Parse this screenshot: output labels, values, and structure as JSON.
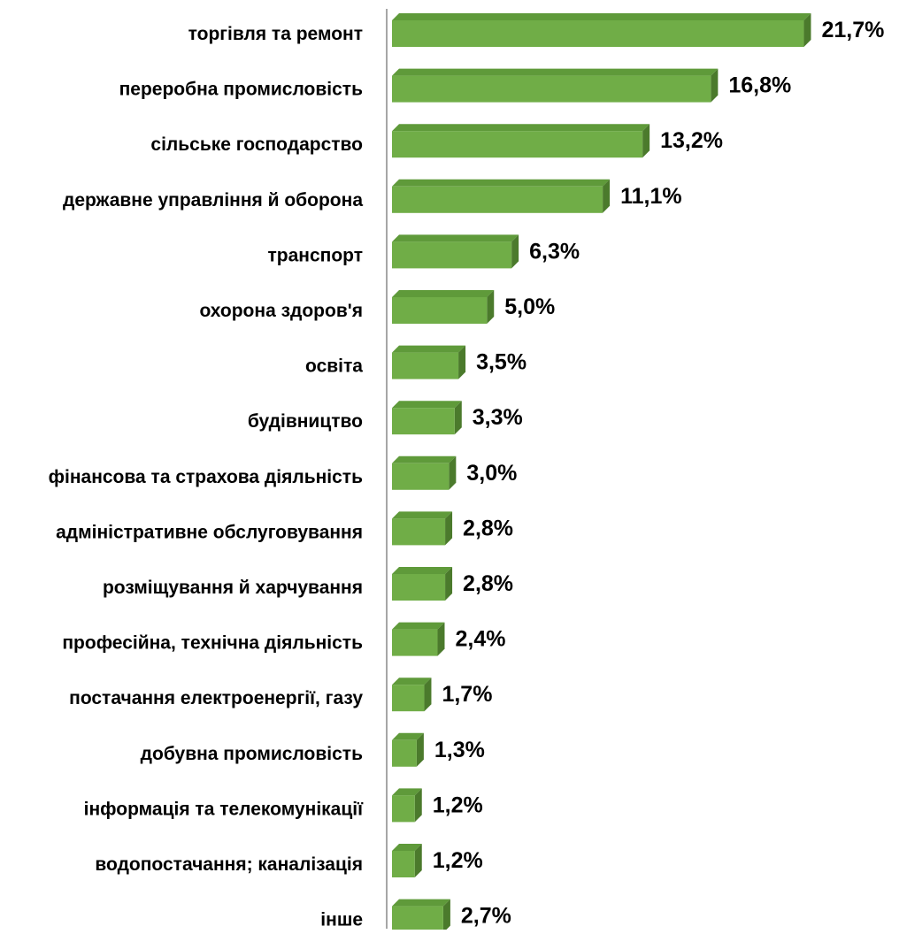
{
  "chart_data": {
    "type": "bar",
    "orientation": "horizontal",
    "three_d": true,
    "bar_color": "#70ad47",
    "bar_side_color": "#4b7a2c",
    "bar_top_color": "#5f9a3a",
    "axis_color": "#a6a6a6",
    "grid": false,
    "title": "",
    "xlabel": "",
    "ylabel": "",
    "categories": [
      "торгівля та ремонт",
      "переробна промисловість",
      "сільське господарство",
      "державне управління й оборона",
      "транспорт",
      "охорона здоров'я ",
      "освіта",
      "будівництво",
      "фінансова та страхова діяльність",
      "адміністративне обслуговування",
      "розміщування й харчування",
      "професійна, технічна діяльність",
      "постачання електроенергії, газу",
      "добувна промисловість",
      "інформація та телекомунікації",
      "водопостачання; каналізація",
      "інше"
    ],
    "values": [
      21.7,
      16.8,
      13.2,
      11.1,
      6.3,
      5.0,
      3.5,
      3.3,
      3.0,
      2.8,
      2.8,
      2.4,
      1.7,
      1.3,
      1.2,
      1.2,
      2.7
    ],
    "value_labels": [
      "21,7%",
      "16,8%",
      "13,2%",
      "11,1%",
      "6,3%",
      "5,0%",
      "3,5%",
      "3,3%",
      "3,0%",
      "2,8%",
      "2,8%",
      "2,4%",
      "1,7%",
      "1,3%",
      "1,2%",
      "1,2%",
      "2,7%"
    ],
    "xlim": [
      0,
      21.7
    ]
  }
}
